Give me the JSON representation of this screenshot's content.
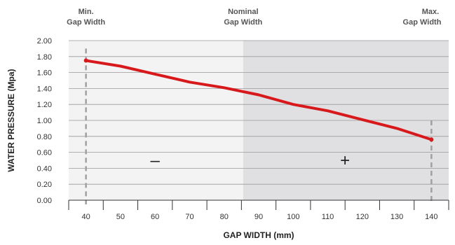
{
  "chart_data": {
    "type": "line",
    "title": "",
    "xlabel": "GAP WIDTH (mm)",
    "ylabel": "WATER PRESSURE (Mpa)",
    "x_ticks": [
      40,
      50,
      60,
      70,
      80,
      90,
      100,
      110,
      120,
      130,
      140
    ],
    "y_ticks": [
      "0.00",
      "0.20",
      "0.40",
      "0.60",
      "0.80",
      "1.00",
      "1.20",
      "1.40",
      "1.60",
      "1.80",
      "2.00"
    ],
    "xlim": [
      35,
      145
    ],
    "ylim": [
      0,
      2.0
    ],
    "grid": true,
    "series": [
      {
        "color": "#d7191c",
        "points": [
          {
            "x": 40,
            "y": 1.75
          },
          {
            "x": 50,
            "y": 1.68
          },
          {
            "x": 60,
            "y": 1.58
          },
          {
            "x": 70,
            "y": 1.48
          },
          {
            "x": 80,
            "y": 1.41
          },
          {
            "x": 90,
            "y": 1.32
          },
          {
            "x": 100,
            "y": 1.2
          },
          {
            "x": 110,
            "y": 1.12
          },
          {
            "x": 120,
            "y": 1.01
          },
          {
            "x": 130,
            "y": 0.9
          },
          {
            "x": 140,
            "y": 0.76
          }
        ]
      }
    ],
    "regions": [
      {
        "x_from": 35,
        "x_to": 85.5,
        "color": "#f3f3f4",
        "sign": "–",
        "sign_x": 60,
        "sign_y": 0.5
      },
      {
        "x_from": 85.5,
        "x_to": 145,
        "color": "#e0e0e2",
        "sign": "+",
        "sign_x": 115,
        "sign_y": 0.5
      }
    ],
    "markers": [
      {
        "x": 40,
        "line": "Min.",
        "line2": "Gap Width",
        "y_top": 1.9
      },
      {
        "x": 85.5,
        "line": "Nominal",
        "line2": "Gap Width",
        "y_top": null
      },
      {
        "x": 140,
        "line": "Max.",
        "line2": "Gap Width",
        "y_top": 1.0
      }
    ],
    "colors": {
      "gridline": "#999999",
      "axis": "#333333",
      "marker_line": "#a0a0a0"
    }
  }
}
